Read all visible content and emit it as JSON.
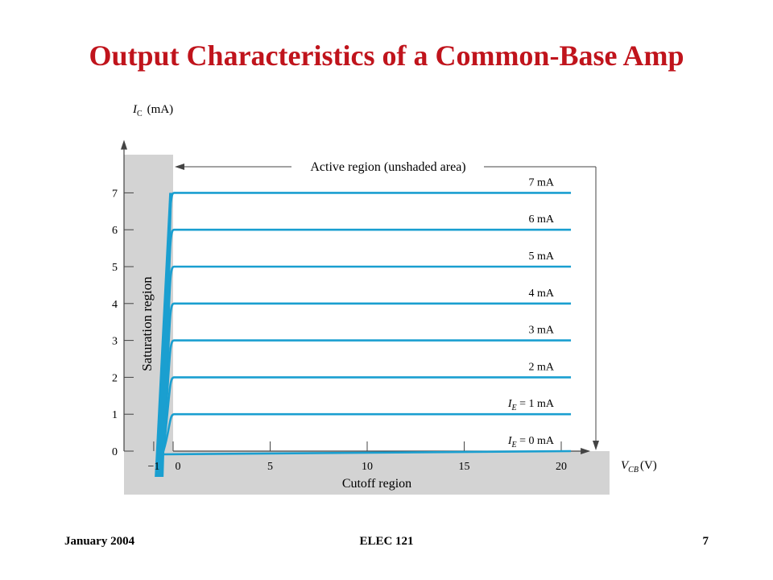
{
  "slide": {
    "title": "Output Characteristics of a Common-Base Amp",
    "footer_left": "January 2004",
    "footer_center": "ELEC 121",
    "footer_right": "7"
  },
  "colors": {
    "title": "#c0141c",
    "curve": "#1a9fd0",
    "shade": "#d3d3d3"
  },
  "chart_data": {
    "type": "line",
    "title": "",
    "xlabel": "VCB (V)",
    "ylabel": "IC (mA)",
    "x_label_parts": {
      "main": "V",
      "sub": "CB",
      "unit": "(V)"
    },
    "y_label_parts": {
      "main": "I",
      "sub": "C",
      "unit": "(mA)"
    },
    "xlim": [
      -1.5,
      21
    ],
    "ylim": [
      0,
      8
    ],
    "x_ticks": [
      -1,
      0,
      5,
      10,
      15,
      20
    ],
    "x_tick_labels": [
      "−1",
      "0",
      "5",
      "10",
      "15",
      "20"
    ],
    "y_ticks": [
      0,
      1,
      2,
      3,
      4,
      5,
      6,
      7
    ],
    "y_tick_labels": [
      "0",
      "1",
      "2",
      "3",
      "4",
      "5",
      "6",
      "7"
    ],
    "grid": false,
    "series": [
      {
        "name": "IE = 0 mA",
        "label_prefix": "I",
        "label_sub": "E",
        "label_text": " = 0 mA",
        "ic": 0
      },
      {
        "name": "IE = 1 mA",
        "label_prefix": "I",
        "label_sub": "E",
        "label_text": " = 1 mA",
        "ic": 1
      },
      {
        "name": "2 mA",
        "label_prefix": "",
        "label_sub": "",
        "label_text": "2 mA",
        "ic": 2
      },
      {
        "name": "3 mA",
        "label_prefix": "",
        "label_sub": "",
        "label_text": "3  mA",
        "ic": 3
      },
      {
        "name": "4 mA",
        "label_prefix": "",
        "label_sub": "",
        "label_text": "4  mA",
        "ic": 4
      },
      {
        "name": "5 mA",
        "label_prefix": "",
        "label_sub": "",
        "label_text": "5  mA",
        "ic": 5
      },
      {
        "name": "6 mA",
        "label_prefix": "",
        "label_sub": "",
        "label_text": "6  mA",
        "ic": 6
      },
      {
        "name": "7 mA",
        "label_prefix": "",
        "label_sub": "",
        "label_text": "7  mA",
        "ic": 7
      }
    ],
    "curve_x_max": 20.5,
    "knee_voltage": -0.7,
    "annotations": {
      "active": "Active region (unshaded area)",
      "saturation": "Saturation region",
      "cutoff": "Cutoff region"
    }
  }
}
